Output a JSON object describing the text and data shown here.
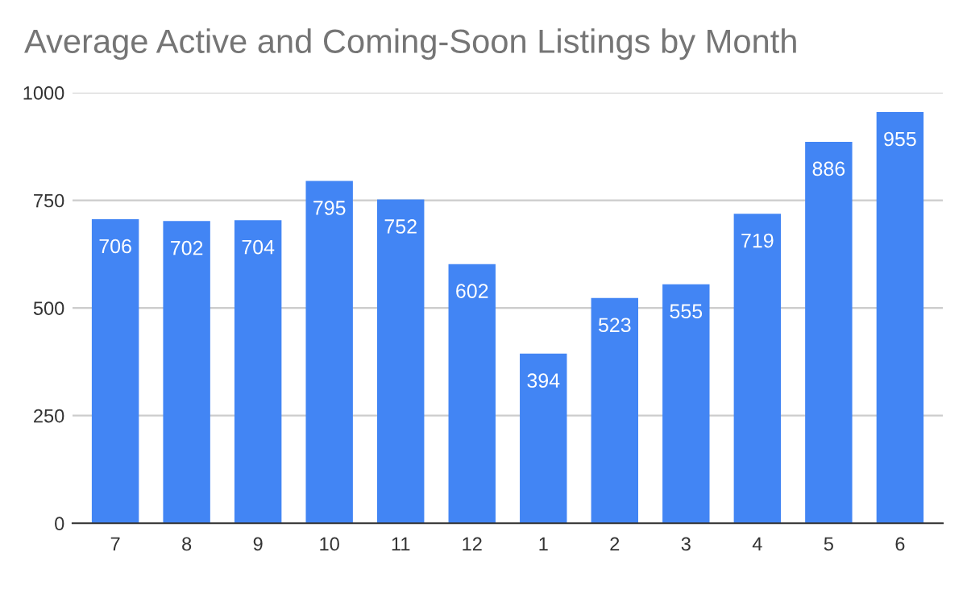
{
  "chart_data": {
    "type": "bar",
    "title": "Average Active and Coming-Soon Listings by Month",
    "categories": [
      "7",
      "8",
      "9",
      "10",
      "11",
      "12",
      "1",
      "2",
      "3",
      "4",
      "5",
      "6"
    ],
    "values": [
      706,
      702,
      704,
      795,
      752,
      602,
      394,
      523,
      555,
      719,
      886,
      955
    ],
    "color": "#4285f4",
    "ylim": [
      0,
      1000
    ],
    "yticks": [
      0,
      250,
      500,
      750,
      1000
    ],
    "grid": "y",
    "data_labels": true,
    "legend": false
  }
}
